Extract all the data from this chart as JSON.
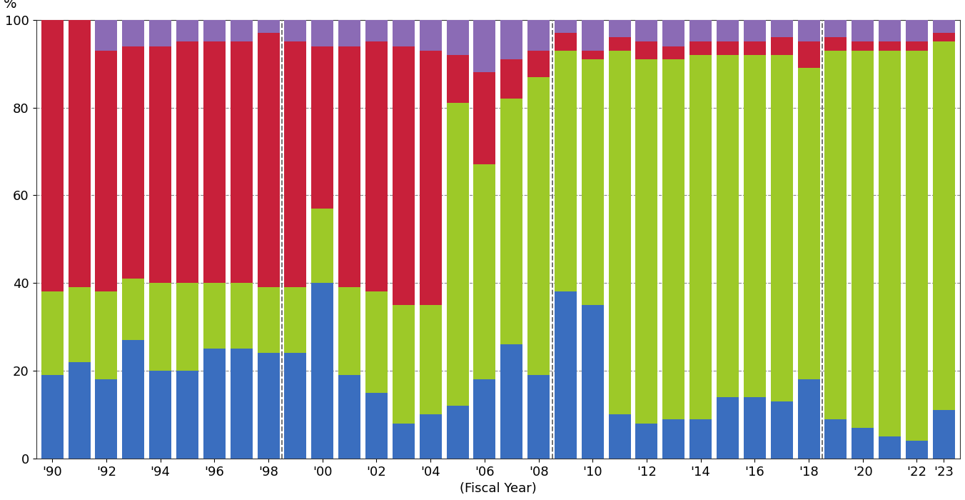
{
  "xlabel": "(Fiscal Year)",
  "ylabel": "%",
  "ylim": [
    0,
    100
  ],
  "colors": [
    "#3A6EBF",
    "#9DC928",
    "#C8203A",
    "#8B6BB5"
  ],
  "years": [
    1990,
    1991,
    1992,
    1993,
    1994,
    1995,
    1996,
    1997,
    1998,
    1999,
    2000,
    2001,
    2002,
    2003,
    2004,
    2005,
    2006,
    2007,
    2008,
    2009,
    2010,
    2011,
    2012,
    2013,
    2014,
    2015,
    2016,
    2017,
    2018,
    2019,
    2020,
    2021,
    2022,
    2023
  ],
  "blue": [
    19,
    22,
    18,
    27,
    20,
    20,
    25,
    25,
    24,
    24,
    40,
    19,
    15,
    8,
    10,
    12,
    18,
    26,
    19,
    38,
    35,
    10,
    8,
    9,
    9,
    14,
    14,
    13,
    18,
    9,
    7,
    5,
    4,
    11
  ],
  "green": [
    19,
    17,
    20,
    14,
    20,
    20,
    15,
    15,
    15,
    15,
    17,
    20,
    23,
    27,
    25,
    69,
    49,
    56,
    68,
    55,
    56,
    83,
    83,
    82,
    83,
    78,
    78,
    79,
    71,
    84,
    86,
    88,
    89,
    84
  ],
  "red": [
    62,
    61,
    55,
    53,
    54,
    55,
    55,
    55,
    58,
    56,
    37,
    55,
    57,
    59,
    58,
    11,
    21,
    9,
    6,
    4,
    2,
    3,
    4,
    3,
    3,
    3,
    3,
    4,
    6,
    3,
    2,
    2,
    2,
    2
  ],
  "purple": [
    0,
    0,
    7,
    6,
    6,
    5,
    5,
    5,
    3,
    5,
    6,
    6,
    5,
    6,
    7,
    8,
    12,
    9,
    7,
    3,
    7,
    4,
    5,
    6,
    5,
    5,
    5,
    4,
    5,
    4,
    5,
    5,
    5,
    3
  ],
  "vline_years": [
    1999,
    2009,
    2019
  ],
  "xtick_years": [
    1990,
    1992,
    1994,
    1996,
    1998,
    2000,
    2002,
    2004,
    2006,
    2008,
    2010,
    2012,
    2014,
    2016,
    2018,
    2020,
    2022,
    2023
  ],
  "xtick_labels": [
    "'90",
    "'92",
    "'94",
    "'96",
    "'98",
    "'00",
    "'02",
    "'04",
    "'06",
    "'08",
    "'10",
    "'12",
    "'14",
    "'16",
    "'18",
    "'20",
    "'22",
    "'23"
  ],
  "background_color": "#FFFFFF",
  "grid_color": "#888888",
  "vline_color": "#666666"
}
